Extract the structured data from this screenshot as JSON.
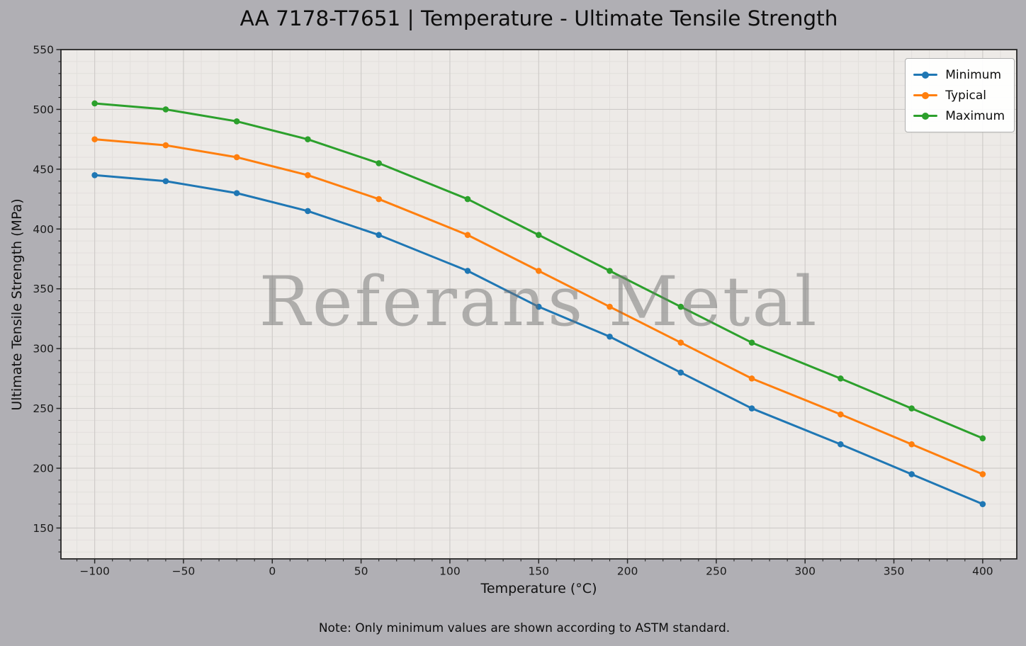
{
  "chart_data": {
    "type": "line",
    "title": "AA 7178-T7651 | Temperature - Ultimate Tensile Strength",
    "xlabel": "Temperature (°C)",
    "ylabel": "Ultimate Tensile Strength (MPa)",
    "watermark": "Referans Metal",
    "note": "Note: Only minimum values are shown according to ASTM standard.",
    "x": [
      -100,
      -60,
      -20,
      20,
      60,
      110,
      150,
      190,
      230,
      270,
      320,
      360,
      400
    ],
    "series": [
      {
        "name": "Minimum",
        "color": "#1f77b4",
        "values": [
          445,
          440,
          430,
          415,
          395,
          365,
          335,
          310,
          280,
          250,
          220,
          195,
          170
        ]
      },
      {
        "name": "Typical",
        "color": "#ff7f0e",
        "values": [
          475,
          470,
          460,
          445,
          425,
          395,
          365,
          335,
          305,
          275,
          245,
          220,
          195
        ]
      },
      {
        "name": "Maximum",
        "color": "#2ca02c",
        "values": [
          505,
          500,
          490,
          475,
          455,
          425,
          395,
          365,
          335,
          305,
          275,
          250,
          225
        ]
      }
    ],
    "xlim": [
      -119,
      419.2
    ],
    "ylim": [
      124.2,
      550
    ],
    "x_ticks": [
      -100,
      -50,
      0,
      50,
      100,
      150,
      200,
      250,
      300,
      350,
      400
    ],
    "y_ticks": [
      150,
      200,
      250,
      300,
      350,
      400,
      450,
      500,
      550
    ],
    "x_tick_labels": [
      "−100",
      "−50",
      "0",
      "50",
      "100",
      "150",
      "200",
      "250",
      "300",
      "350",
      "400"
    ],
    "y_tick_labels": [
      "150",
      "200",
      "250",
      "300",
      "350",
      "400",
      "450",
      "500",
      "550"
    ],
    "minor_tick_step_x": 10,
    "minor_tick_step_y": 10,
    "grid": "major+minor",
    "legend_position": "upper right",
    "colors": {
      "figure_background": "#b0afb4",
      "plot_background": "#edeae7",
      "major_grid": "#cfccc9",
      "minor_grid": "#e2dfdc",
      "spine": "#262626",
      "tick_label": "#1a1a1a"
    }
  }
}
